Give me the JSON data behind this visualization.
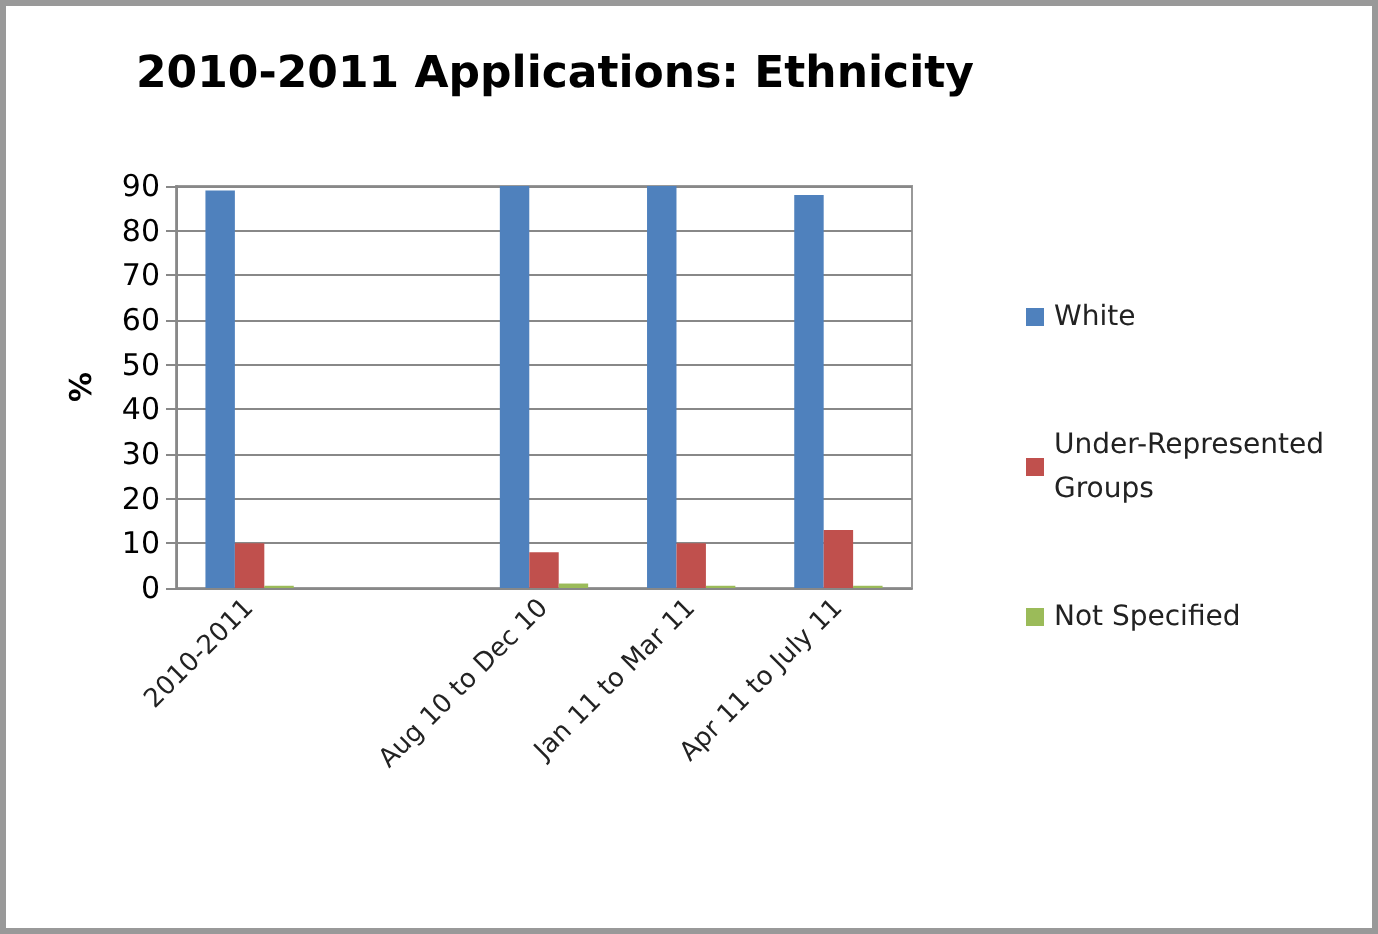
{
  "chart_data": {
    "type": "bar",
    "title": "2010-2011 Applications: Ethnicity",
    "ylabel": "%",
    "categories": [
      "2010-2011",
      null,
      "Aug 10 to Dec 10",
      "Jan 11 to Mar 11",
      "Apr 11 to July 11"
    ],
    "series": [
      {
        "name": "White",
        "color": "#4f81bd",
        "values": [
          89,
          null,
          90,
          90,
          88
        ]
      },
      {
        "name": "Under-Represented Groups",
        "color": "#c0504d",
        "values": [
          10,
          null,
          8,
          10,
          13
        ]
      },
      {
        "name": "Not Specified",
        "color": "#9bbb59",
        "values": [
          0.5,
          null,
          1,
          0.5,
          0.5
        ]
      }
    ],
    "ylim": [
      0,
      90
    ],
    "yticks": [
      0,
      10,
      20,
      30,
      40,
      50,
      60,
      70,
      80,
      90
    ],
    "grid": "y",
    "legend": "right"
  }
}
